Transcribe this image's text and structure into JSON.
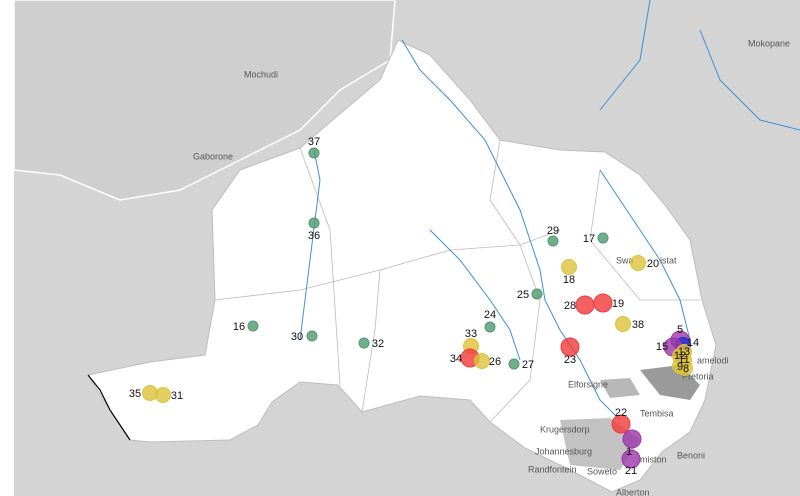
{
  "map": {
    "place_labels": [
      "Mokopane",
      "Mochudi",
      "Gaborone",
      "Swa",
      "istat",
      "Pretoria",
      "amelodi",
      "Elforsigne",
      "Tembisa",
      "Krugersdorp",
      "Johannesburg",
      "Randfontein",
      "Soweto",
      "miston",
      "Benoni",
      "Alberton"
    ],
    "sites": [
      {
        "label": "37",
        "color": "#4f9a6e"
      },
      {
        "label": "36",
        "color": "#4f9a6e"
      },
      {
        "label": "29",
        "color": "#4f9a6e"
      },
      {
        "label": "17",
        "color": "#4f9a6e"
      },
      {
        "label": "20",
        "color": "#dcc23a"
      },
      {
        "label": "18",
        "color": "#dcc23a"
      },
      {
        "label": "25",
        "color": "#4f9a6e"
      },
      {
        "label": "28",
        "color": "#f03a3a"
      },
      {
        "label": "19",
        "color": "#f03a3a"
      },
      {
        "label": "38",
        "color": "#dcc23a"
      },
      {
        "label": "24",
        "color": "#4f9a6e"
      },
      {
        "label": "16",
        "color": "#4f9a6e"
      },
      {
        "label": "30",
        "color": "#4f9a6e"
      },
      {
        "label": "32",
        "color": "#4f9a6e"
      },
      {
        "label": "33",
        "color": "#dcc23a"
      },
      {
        "label": "34",
        "color": "#f03a3a"
      },
      {
        "label": "26",
        "color": "#dcc23a"
      },
      {
        "label": "27",
        "color": "#4f9a6e"
      },
      {
        "label": "23",
        "color": "#f03a3a"
      },
      {
        "label": "5",
        "color": "#9b36a8"
      },
      {
        "label": "14",
        "color": "#1f2fd0"
      },
      {
        "label": "15",
        "color": "#9b36a8"
      },
      {
        "label": "13",
        "color": "#dcc23a"
      },
      {
        "label": "12",
        "color": "#dcc23a"
      },
      {
        "label": "11",
        "color": "#dcc23a"
      },
      {
        "label": "9",
        "color": "#dcc23a"
      },
      {
        "label": "8",
        "color": "#dcc23a"
      },
      {
        "label": "35",
        "color": "#dcc23a"
      },
      {
        "label": "31",
        "color": "#dcc23a"
      },
      {
        "label": "22",
        "color": "#f03a3a"
      },
      {
        "label": "1",
        "color": "#9b36a8"
      },
      {
        "label": "21",
        "color": "#9b36a8"
      }
    ]
  }
}
